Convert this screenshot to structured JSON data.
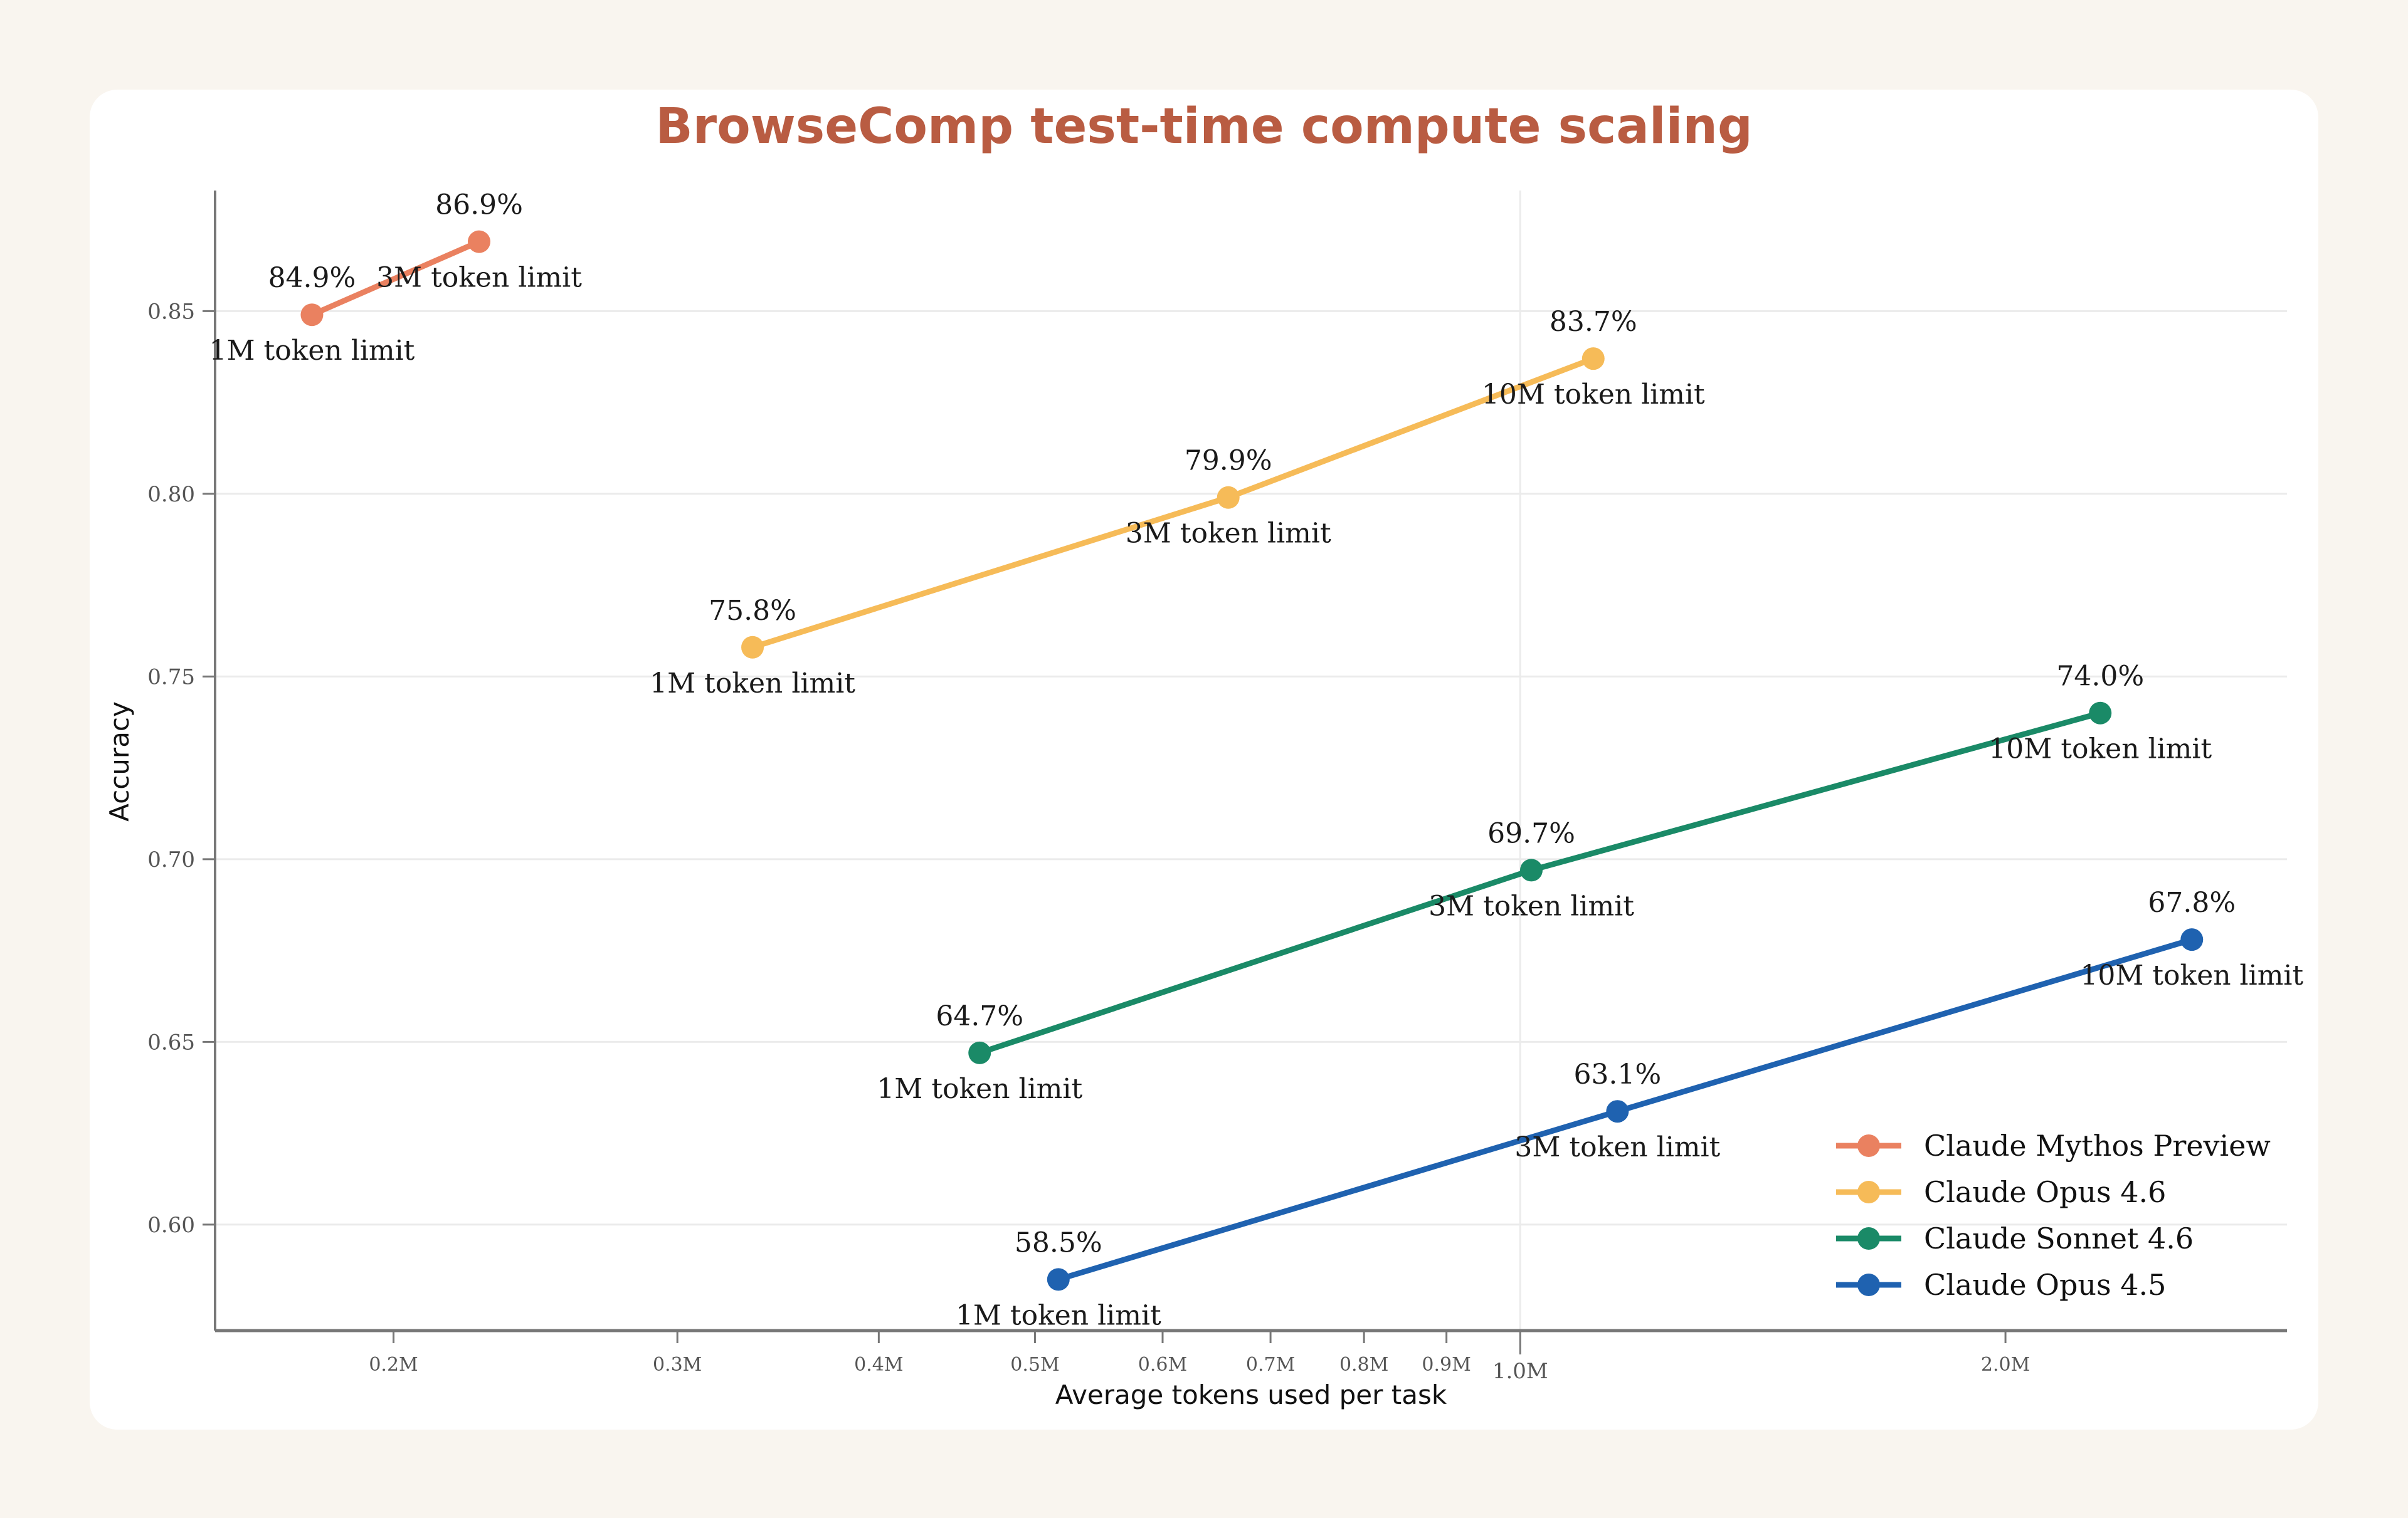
{
  "chart_data": {
    "type": "line",
    "title": "BrowseComp test-time compute scaling",
    "xlabel": "Average tokens used per task",
    "ylabel": "Accuracy",
    "xscale": "log",
    "xlim": [
      0.155,
      2.99
    ],
    "ylim": [
      0.571,
      0.883
    ],
    "grid": true,
    "legend_position": "bottom-right",
    "yticks": [
      {
        "value": 0.6,
        "label": "0.60"
      },
      {
        "value": 0.65,
        "label": "0.65"
      },
      {
        "value": 0.7,
        "label": "0.70"
      },
      {
        "value": 0.75,
        "label": "0.75"
      },
      {
        "value": 0.8,
        "label": "0.80"
      },
      {
        "value": 0.85,
        "label": "0.85"
      }
    ],
    "xticks": [
      {
        "value": 0.2,
        "label": "0.2M",
        "major": false
      },
      {
        "value": 0.3,
        "label": "0.3M",
        "major": false
      },
      {
        "value": 0.4,
        "label": "0.4M",
        "major": false
      },
      {
        "value": 0.5,
        "label": "0.5M",
        "major": false
      },
      {
        "value": 0.6,
        "label": "0.6M",
        "major": false
      },
      {
        "value": 0.7,
        "label": "0.7M",
        "major": false
      },
      {
        "value": 0.8,
        "label": "0.8M",
        "major": false
      },
      {
        "value": 0.9,
        "label": "0.9M",
        "major": false
      },
      {
        "value": 1.0,
        "label": "1.0M",
        "major": true
      },
      {
        "value": 2.0,
        "label": "2.0M",
        "major": false
      }
    ],
    "series": [
      {
        "name": "Claude Mythos Preview",
        "color": "#ea8160",
        "points": [
          {
            "x": 0.178,
            "y": 0.849,
            "value_label": "84.9%",
            "point_label": "1M token limit"
          },
          {
            "x": 0.226,
            "y": 0.869,
            "value_label": "86.9%",
            "point_label": "3M token limit"
          }
        ]
      },
      {
        "name": "Claude Opus 4.6",
        "color": "#f6bb58",
        "points": [
          {
            "x": 0.334,
            "y": 0.758,
            "value_label": "75.8%",
            "point_label": "1M token limit"
          },
          {
            "x": 0.659,
            "y": 0.799,
            "value_label": "79.9%",
            "point_label": "3M token limit"
          },
          {
            "x": 1.11,
            "y": 0.837,
            "value_label": "83.7%",
            "point_label": "10M token limit"
          }
        ]
      },
      {
        "name": "Claude Sonnet 4.6",
        "color": "#1a8a67",
        "points": [
          {
            "x": 0.462,
            "y": 0.647,
            "value_label": "64.7%",
            "point_label": "1M token limit"
          },
          {
            "x": 1.016,
            "y": 0.697,
            "value_label": "69.7%",
            "point_label": "3M token limit"
          },
          {
            "x": 2.29,
            "y": 0.74,
            "value_label": "74.0%",
            "point_label": "10M token limit"
          }
        ]
      },
      {
        "name": "Claude Opus 4.5",
        "color": "#1f62b0",
        "points": [
          {
            "x": 0.517,
            "y": 0.585,
            "value_label": "58.5%",
            "point_label": "1M token limit"
          },
          {
            "x": 1.149,
            "y": 0.631,
            "value_label": "63.1%",
            "point_label": "3M token limit"
          },
          {
            "x": 2.61,
            "y": 0.678,
            "value_label": "67.8%",
            "point_label": "10M token limit"
          }
        ]
      }
    ]
  }
}
